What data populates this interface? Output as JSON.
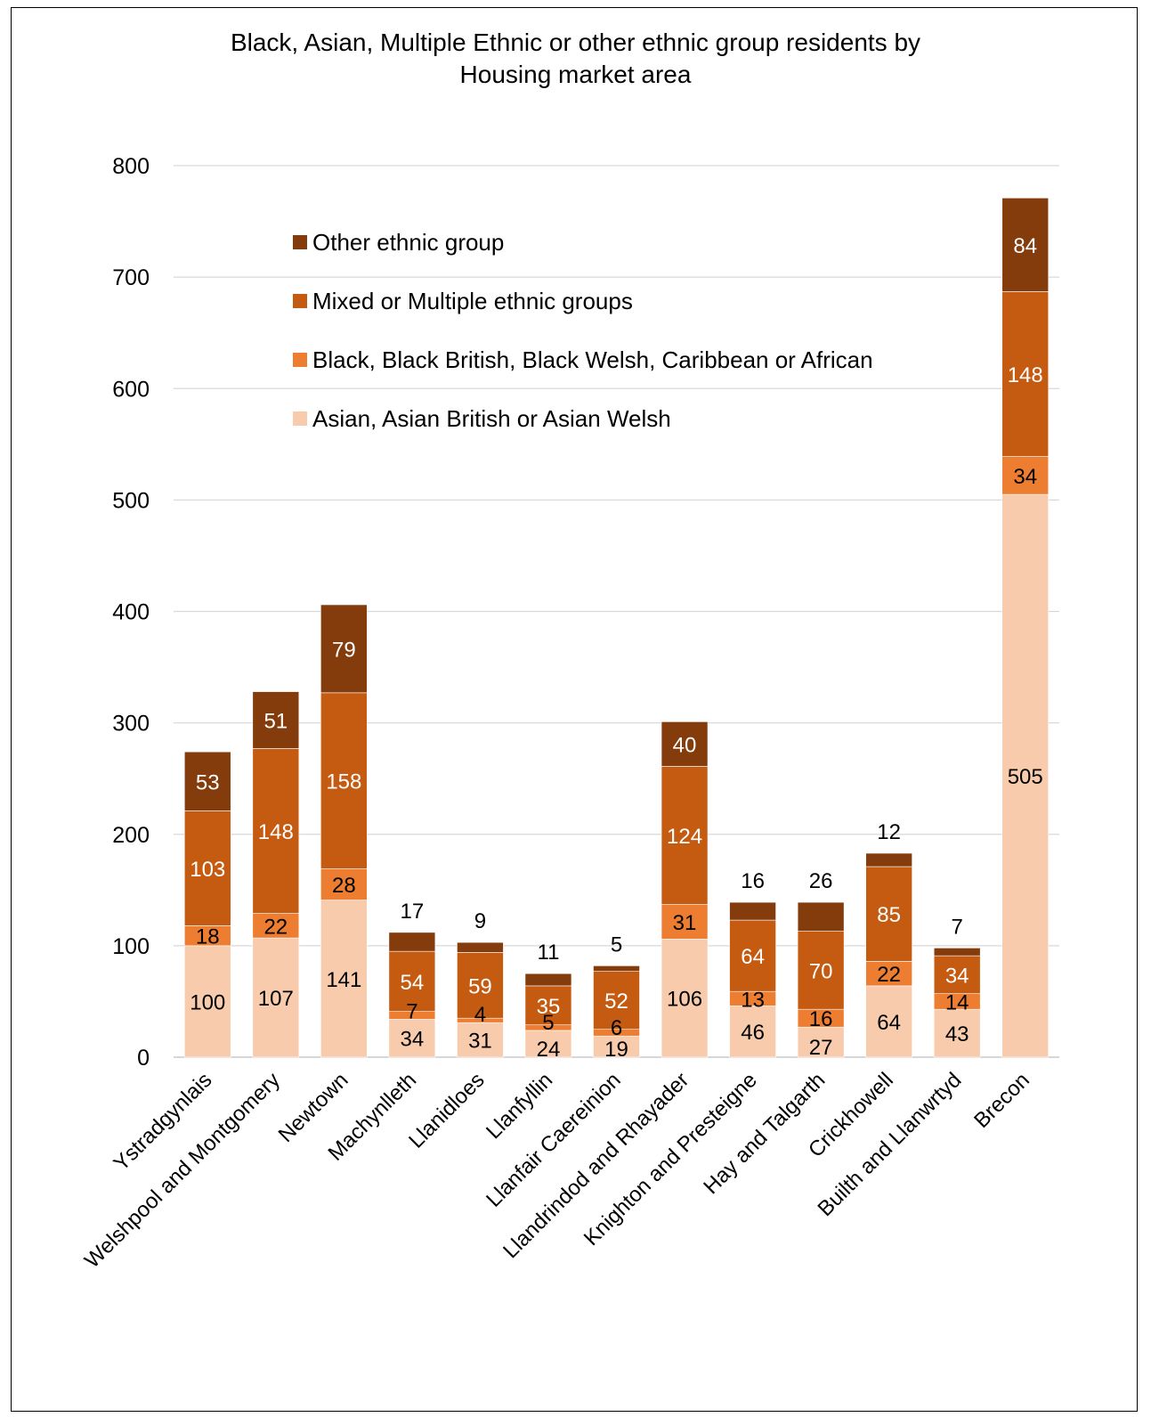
{
  "chart_data": {
    "type": "bar",
    "stacked": true,
    "title_line1": "Black, Asian, Multiple Ethnic or other ethnic group residents by",
    "title_line2": "Housing market area",
    "categories": [
      "Ystradgynlais",
      "Welshpool and Montgomery",
      "Newtown",
      "Machynlleth",
      "Llanidloes",
      "Llanfyllin",
      "Llanfair Caereinion",
      "Llandrindod and Rhayader",
      "Knighton and Presteigne",
      "Hay and Talgarth",
      "Crickhowell",
      "Builth and Llanwrtyd",
      "Brecon"
    ],
    "series": [
      {
        "name": "Asian, Asian British or Asian Welsh",
        "color": "#F8CBAD",
        "values": [
          100,
          107,
          141,
          34,
          31,
          24,
          19,
          106,
          46,
          27,
          64,
          43,
          505
        ]
      },
      {
        "name": "Black, Black British, Black Welsh, Caribbean or African",
        "color": "#ED7D31",
        "values": [
          18,
          22,
          28,
          7,
          4,
          5,
          6,
          31,
          13,
          16,
          22,
          14,
          34
        ]
      },
      {
        "name": "Mixed or Multiple ethnic groups",
        "color": "#C55A11",
        "values": [
          103,
          148,
          158,
          54,
          59,
          35,
          52,
          124,
          64,
          70,
          85,
          34,
          148
        ]
      },
      {
        "name": "Other ethnic group",
        "color": "#843C0C",
        "values": [
          53,
          51,
          79,
          17,
          9,
          11,
          5,
          40,
          16,
          26,
          12,
          7,
          84
        ]
      }
    ],
    "ylim": [
      0,
      800
    ],
    "yticks": [
      0,
      100,
      200,
      300,
      400,
      500,
      600,
      700,
      800
    ],
    "grid": true,
    "legend_position": "top-left inside plot"
  }
}
